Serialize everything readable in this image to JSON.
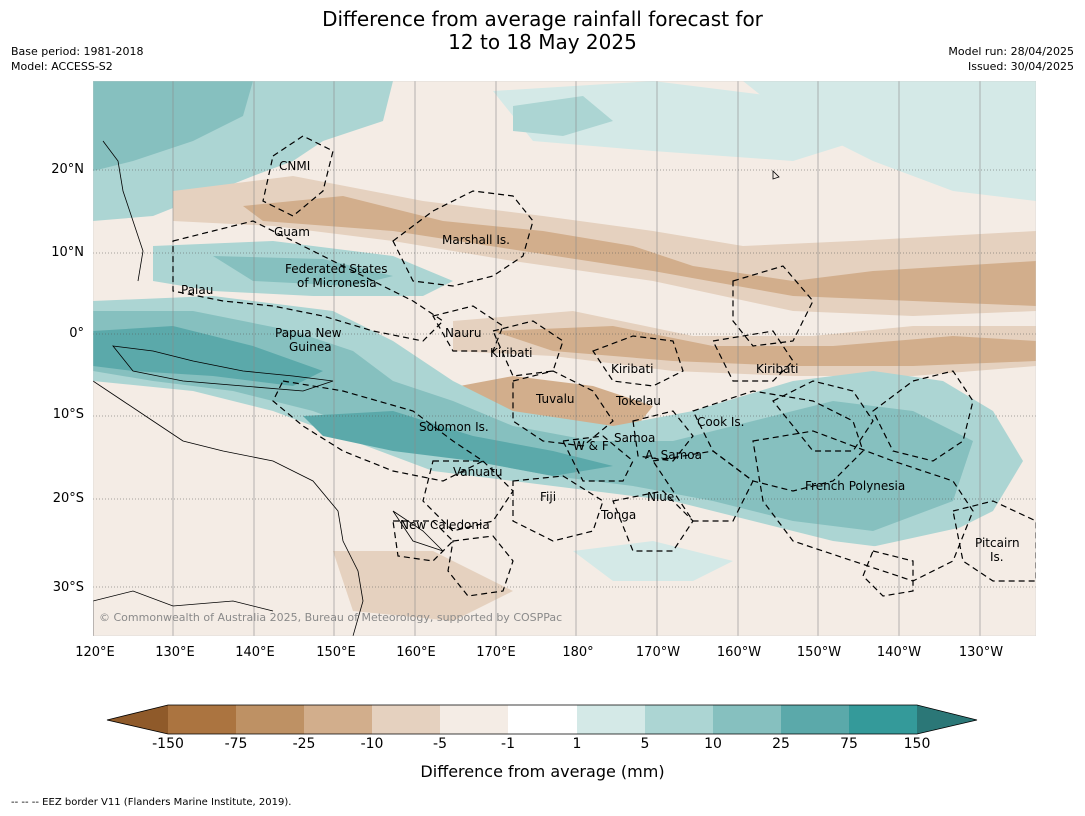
{
  "title": {
    "line1": "Difference from average rainfall forecast for",
    "line2": "12 to 18 May 2025"
  },
  "meta_left": {
    "base_period": "Base period: 1981-2018",
    "model": "Model: ACCESS-S2"
  },
  "meta_right": {
    "model_run": "Model run: 28/04/2025",
    "issued": "Issued: 30/04/2025"
  },
  "axes": {
    "lat_labels": [
      "20°N",
      "10°N",
      "0°",
      "10°S",
      "20°S",
      "30°S"
    ],
    "lon_labels": [
      "120°E",
      "130°E",
      "140°E",
      "150°E",
      "160°E",
      "170°E",
      "180°",
      "170°W",
      "160°W",
      "150°W",
      "140°W",
      "130°W"
    ]
  },
  "places": [
    "CNMI",
    "Guam",
    "Marshall Is.",
    "Federated States",
    "of Micronesia",
    "Palau",
    "Papua New",
    "Guinea",
    "Nauru",
    "Kiribati",
    "Kiribati",
    "Kiribati",
    "Tuvalu",
    "Tokelau",
    "Solomon Is.",
    "Samoa",
    "W & F",
    "A. Samoa",
    "Cook Is.",
    "Vanuatu",
    "Fiji",
    "Niue",
    "French Polynesia",
    "Tonga",
    "New Caledonia",
    "Pitcairn",
    "Is."
  ],
  "copyright": "© Commonwealth of Australia 2025, Bureau of Meteorology, supported by COSPPac",
  "colorbar": {
    "ticks": [
      "-150",
      "-75",
      "-25",
      "-10",
      "-5",
      "-1",
      "1",
      "5",
      "10",
      "25",
      "75",
      "150"
    ],
    "colors": [
      "#8f5a2a",
      "#ab7440",
      "#be9164",
      "#d2ae8c",
      "#e5d1bf",
      "#f4ece5",
      "#ffffff",
      "#d4e9e7",
      "#acd5d3",
      "#86c0bf",
      "#5ba9aa",
      "#349a9a",
      "#2b7777"
    ],
    "label": "Difference from average (mm)"
  },
  "footer": "--  --  -- EEZ border V11 (Flanders Marine Institute, 2019)."
}
